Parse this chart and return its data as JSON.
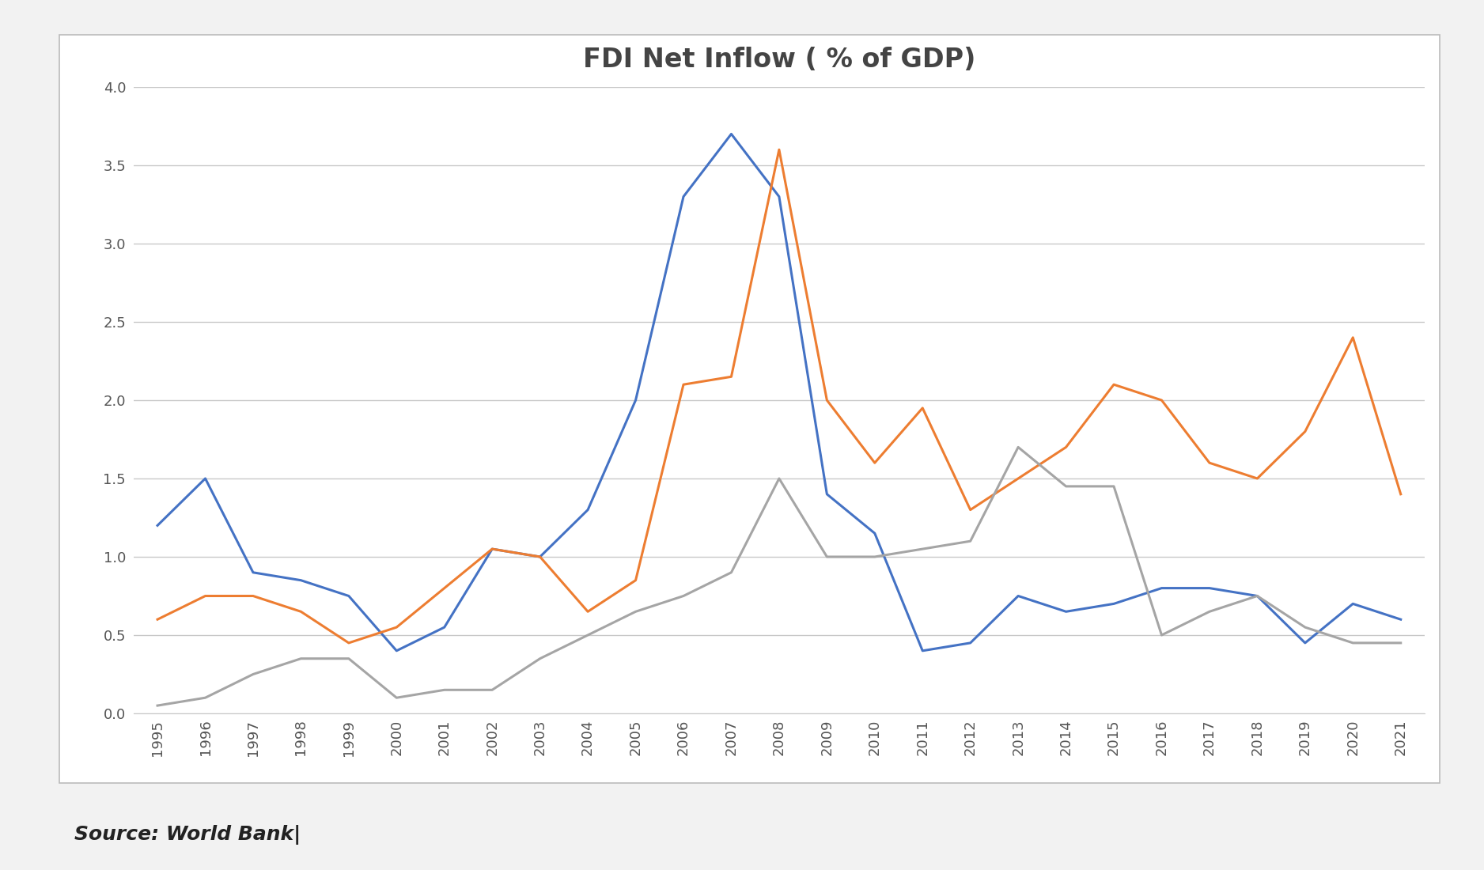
{
  "title": "FDI Net Inflow ( % of GDP)",
  "years": [
    1995,
    1996,
    1997,
    1998,
    1999,
    2000,
    2001,
    2002,
    2003,
    2004,
    2005,
    2006,
    2007,
    2008,
    2009,
    2010,
    2011,
    2012,
    2013,
    2014,
    2015,
    2016,
    2017,
    2018,
    2019,
    2020,
    2021
  ],
  "pakistan": [
    1.2,
    1.5,
    0.9,
    0.85,
    0.75,
    0.4,
    0.55,
    1.05,
    1.0,
    1.3,
    2.0,
    3.3,
    3.7,
    3.3,
    1.4,
    1.15,
    0.4,
    0.45,
    0.75,
    0.65,
    0.7,
    0.8,
    0.8,
    0.75,
    0.45,
    0.7,
    0.6
  ],
  "india": [
    0.6,
    0.75,
    0.75,
    0.65,
    0.45,
    0.55,
    0.8,
    1.05,
    1.0,
    0.65,
    0.85,
    2.1,
    2.15,
    3.6,
    2.0,
    1.6,
    1.95,
    1.3,
    1.5,
    1.7,
    2.1,
    2.0,
    1.6,
    1.5,
    1.8,
    2.4,
    1.4
  ],
  "bangladesh": [
    0.05,
    0.1,
    0.25,
    0.35,
    0.35,
    0.1,
    0.15,
    0.15,
    0.35,
    0.5,
    0.65,
    0.75,
    0.9,
    1.5,
    1.0,
    1.0,
    1.05,
    1.1,
    1.7,
    1.45,
    1.45,
    0.5,
    0.65,
    0.75,
    0.55,
    0.45,
    0.45
  ],
  "pakistan_color": "#4472C4",
  "india_color": "#ED7D31",
  "bangladesh_color": "#A5A5A5",
  "ylim": [
    0.0,
    4.0
  ],
  "yticks": [
    0.0,
    0.5,
    1.0,
    1.5,
    2.0,
    2.5,
    3.0,
    3.5,
    4.0
  ],
  "source_text": "Source: World Bank|",
  "background_color": "#F2F2F2",
  "plot_bg_color": "#FFFFFF",
  "box_bg_color": "#FFFFFF",
  "box_edge_color": "#BBBBBB",
  "grid_color": "#C8C8C8",
  "title_fontsize": 24,
  "tick_fontsize": 13,
  "legend_fontsize": 14,
  "source_fontsize": 18,
  "line_width": 2.2
}
